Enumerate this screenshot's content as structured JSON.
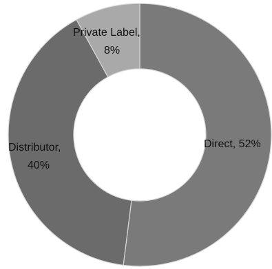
{
  "chart_data": {
    "type": "pie",
    "variant": "donut",
    "slices": [
      {
        "category": "Direct",
        "value": 52,
        "value_label": "52%",
        "color": "#7a7a7a"
      },
      {
        "category": "Distributor",
        "value": 40,
        "value_label": "40%",
        "color": "#6b6b6b"
      },
      {
        "category": "Private Label",
        "value": 8,
        "value_label": "8%",
        "color": "#a9a9a9"
      }
    ],
    "start": "top",
    "direction": "clockwise",
    "separator_color": "#d9d9d9",
    "title": "",
    "legend": "none"
  }
}
